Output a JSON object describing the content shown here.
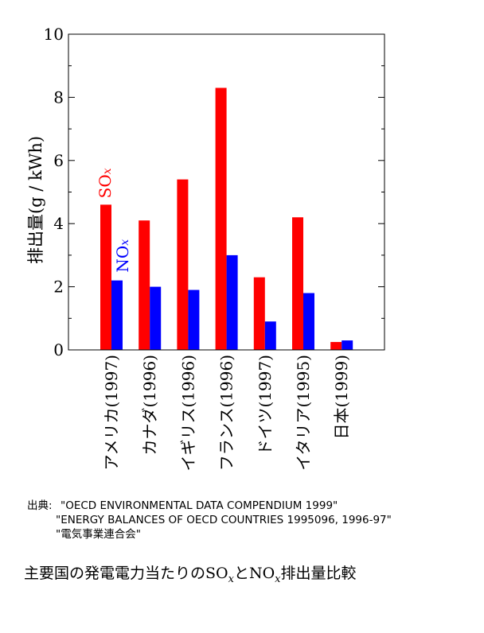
{
  "chart_data": {
    "type": "bar",
    "ylabel": "排出量(g / kWh)",
    "ylim": [
      0,
      10
    ],
    "yticks": [
      "0",
      "2",
      "4",
      "6",
      "8",
      "10"
    ],
    "categories": [
      "アメリカ(1997)",
      "カナダ(1996)",
      "イギリス(1996)",
      "フランス(1996)",
      "ドイツ(1997)",
      "イタリア(1995)",
      "日本(1999)"
    ],
    "series": [
      {
        "name_main": "SO",
        "name_sub": "x",
        "color": "#ff0000",
        "values": [
          4.6,
          4.1,
          5.4,
          8.3,
          2.3,
          4.2,
          0.25
        ]
      },
      {
        "name_main": "NO",
        "name_sub": "x",
        "color": "#0000ff",
        "values": [
          2.2,
          2.0,
          1.9,
          3.0,
          0.9,
          1.8,
          0.3
        ]
      }
    ]
  },
  "source": {
    "label": "出典:",
    "lines": [
      "\"OECD ENVIRONMENTAL DATA COMPENDIUM 1999\"",
      "\"ENERGY BALANCES OF OECD COUNTRIES 1995096, 1996-97\"",
      "\"電気事業連合会\""
    ]
  },
  "caption": {
    "pre": "主要国の発電電力当たりの",
    "so_main": "SO",
    "so_sub": "x",
    "mid": "と",
    "no_main": "NO",
    "no_sub": "x",
    "post": "排出量比較"
  }
}
